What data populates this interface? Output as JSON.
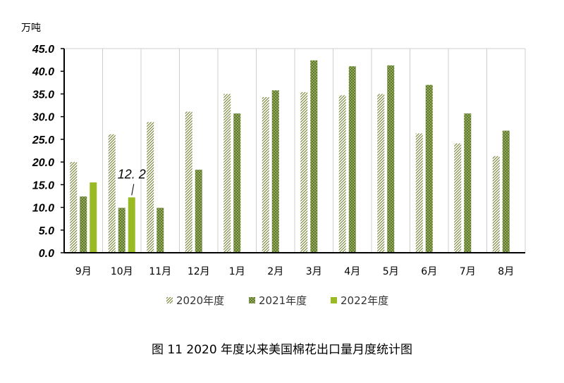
{
  "caption": "图 11   2020 年度以来美国棉花出口量月度统计图",
  "chart_data": {
    "type": "bar",
    "title": "",
    "ylabel": "万吨",
    "xlabel": "",
    "ylim": [
      0,
      45
    ],
    "ytick_step": 5,
    "ytick_labels": [
      "0.0",
      "5.0",
      "10.0",
      "15.0",
      "20.0",
      "25.0",
      "30.0",
      "35.0",
      "40.0",
      "45.0"
    ],
    "grid": "vertical",
    "legend": "bottom",
    "categories": [
      "9月",
      "10月",
      "11月",
      "12月",
      "1月",
      "2月",
      "3月",
      "4月",
      "5月",
      "6月",
      "7月",
      "8月"
    ],
    "series": [
      {
        "name": "2020年度",
        "pattern": "hatched",
        "color": "#6f7f2e",
        "values": [
          20.0,
          26.1,
          28.8,
          31.1,
          35.0,
          34.3,
          35.4,
          34.7,
          35.0,
          26.3,
          24.1,
          21.3
        ]
      },
      {
        "name": "2021年度",
        "pattern": "dotted",
        "color": "#5f7a25",
        "values": [
          12.4,
          9.9,
          9.9,
          18.3,
          30.7,
          35.8,
          42.4,
          41.1,
          41.3,
          37.0,
          30.7,
          26.9
        ]
      },
      {
        "name": "2022年度",
        "pattern": "solid",
        "color": "#9aba24",
        "values": [
          15.5,
          12.2,
          null,
          null,
          null,
          null,
          null,
          null,
          null,
          null,
          null,
          null
        ]
      }
    ],
    "annotations": [
      {
        "text": "12. 2",
        "series": 2,
        "category": 1
      }
    ]
  }
}
